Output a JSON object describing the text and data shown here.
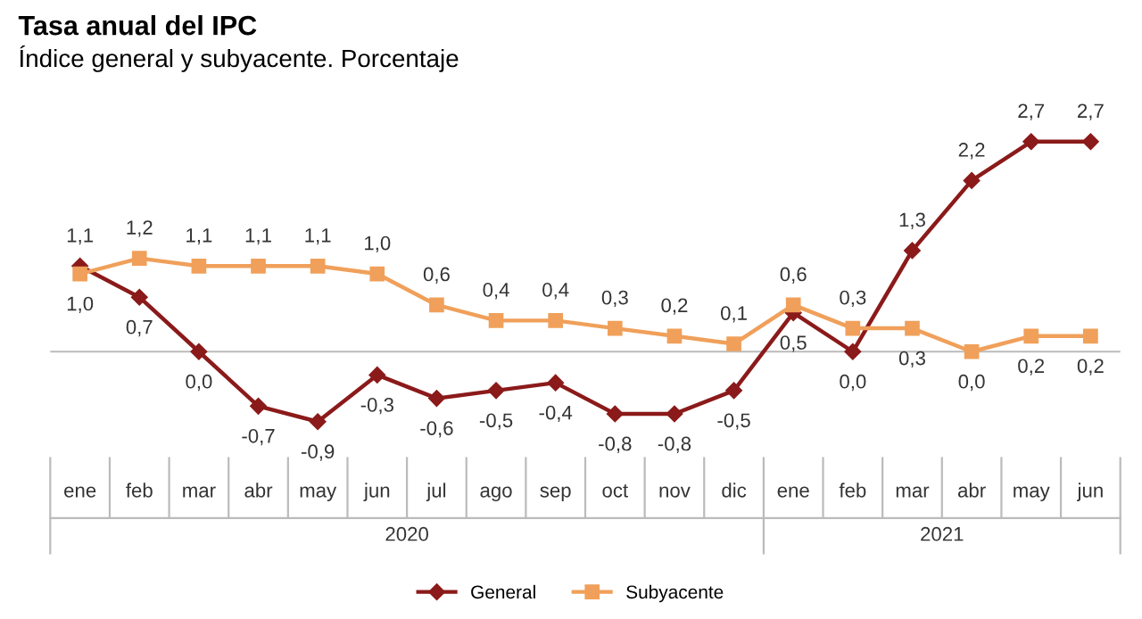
{
  "chart_data": {
    "type": "line",
    "title": "Tasa anual del IPC",
    "subtitle": "Índice general y subyacente. Porcentaje",
    "categories": [
      "ene",
      "feb",
      "mar",
      "abr",
      "may",
      "jun",
      "jul",
      "ago",
      "sep",
      "oct",
      "nov",
      "dic",
      "ene",
      "feb",
      "mar",
      "abr",
      "may",
      "jun"
    ],
    "annotations": [
      "2020",
      "2021"
    ],
    "series": [
      {
        "name": "General",
        "color": "#8b1a1a",
        "marker": "diamond",
        "values": [
          1.1,
          0.7,
          0.0,
          -0.7,
          -0.9,
          -0.3,
          -0.6,
          -0.5,
          -0.4,
          -0.8,
          -0.8,
          -0.5,
          0.5,
          0.0,
          1.3,
          2.2,
          2.7,
          2.7
        ],
        "value_labels": [
          "1,1",
          "0,7",
          "0,0",
          "-0,7",
          "-0,9",
          "-0,3",
          "-0,6",
          "-0,5",
          "-0,4",
          "-0,8",
          "-0,8",
          "-0,5",
          "0,5",
          "0,0",
          "1,3",
          "2,2",
          "2,7",
          "2,7"
        ]
      },
      {
        "name": "Subyacente",
        "color": "#f0a05a",
        "marker": "square",
        "values": [
          1.0,
          1.2,
          1.1,
          1.1,
          1.1,
          1.0,
          0.6,
          0.4,
          0.4,
          0.3,
          0.2,
          0.1,
          0.6,
          0.3,
          0.3,
          0.0,
          0.2,
          0.2
        ],
        "value_labels": [
          "1,0",
          "1,2",
          "1,1",
          "1,1",
          "1,1",
          "1,0",
          "0,6",
          "0,4",
          "0,4",
          "0,3",
          "0,2",
          "0,1",
          "0,6",
          "0,3",
          "0,3",
          "0,0",
          "0,2",
          "0,2"
        ]
      }
    ],
    "tick_labels": "x",
    "grid": false,
    "legend": "bottom",
    "line_style": "solid"
  }
}
